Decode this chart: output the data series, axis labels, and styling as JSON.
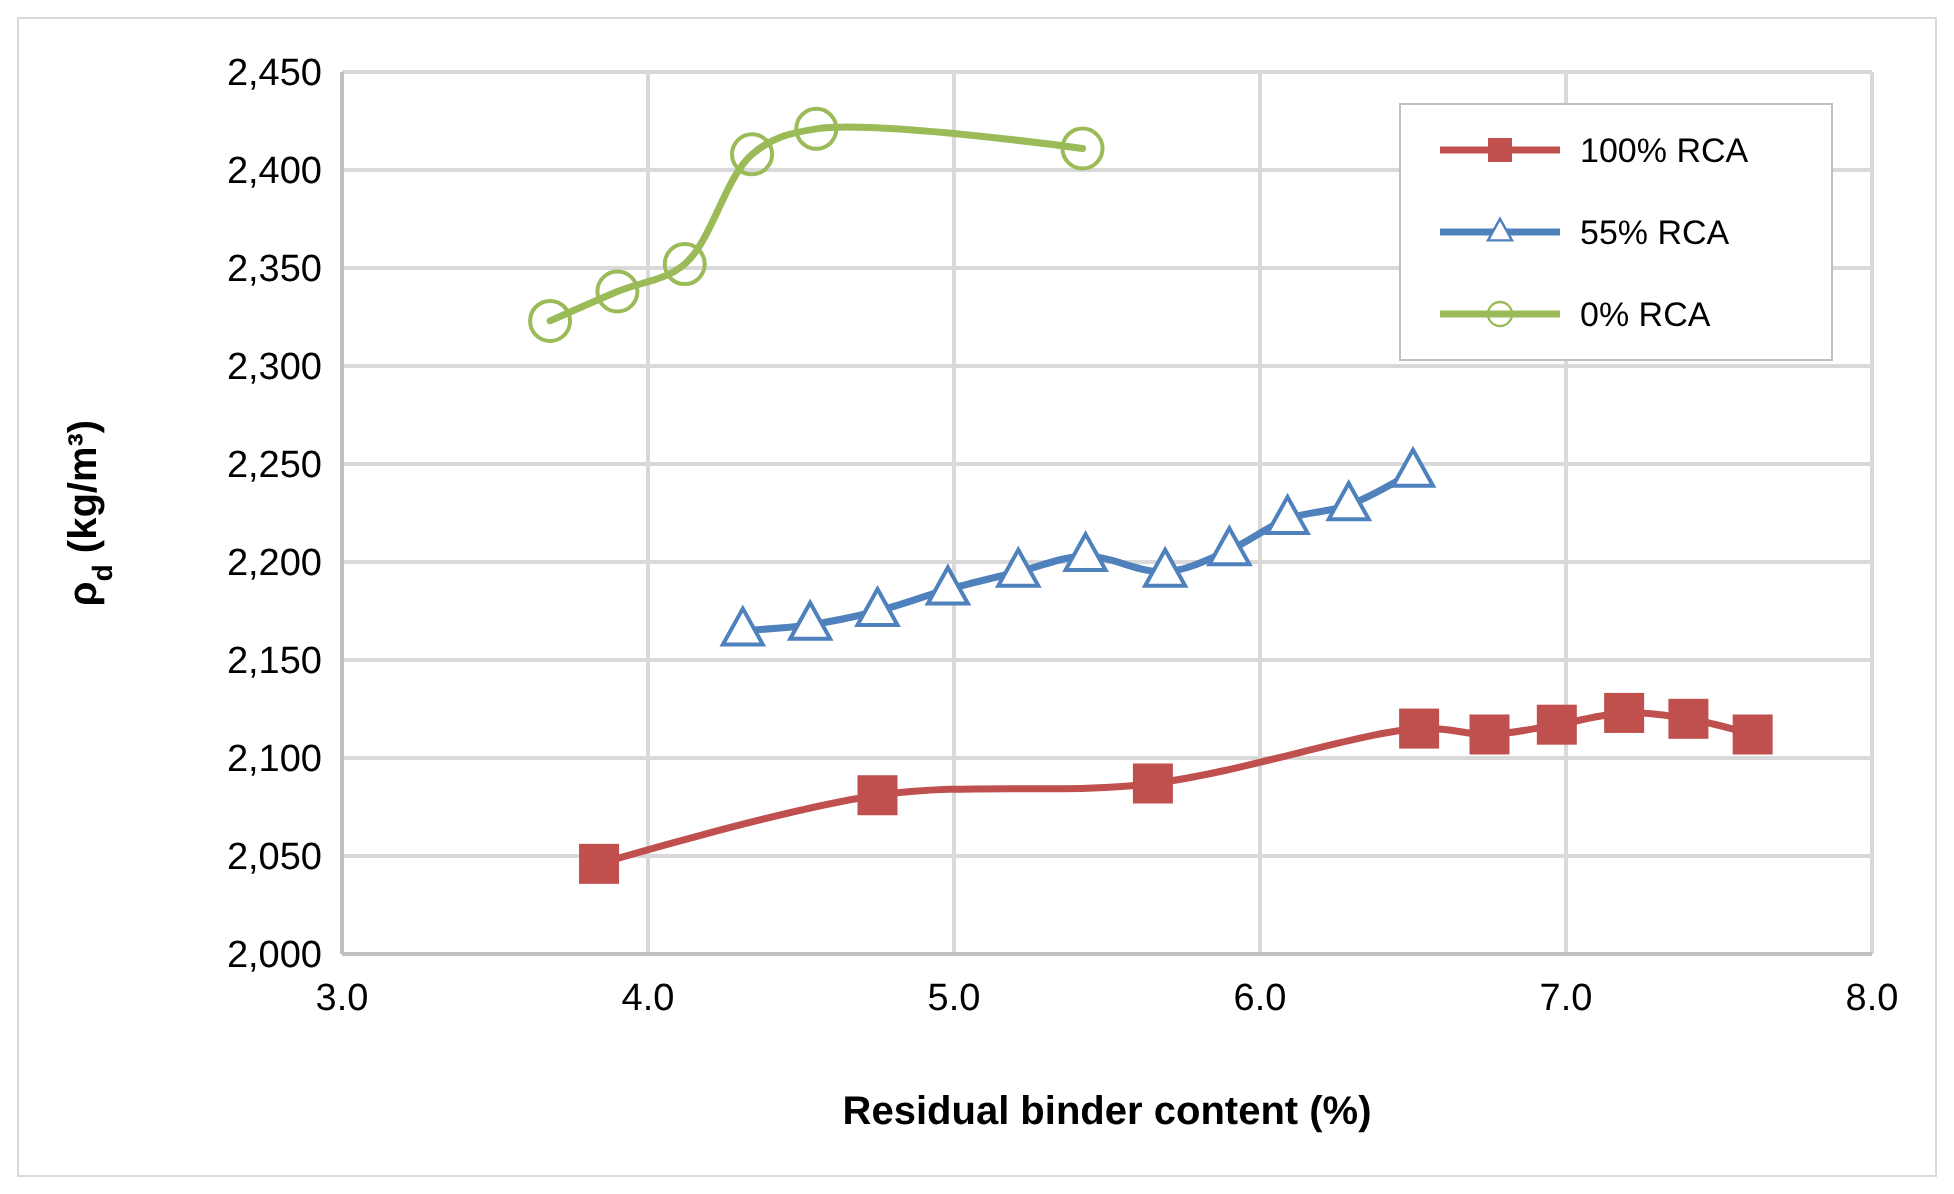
{
  "chart_data": {
    "type": "line",
    "xlabel": "Residual binder content (%)",
    "ylabel": "ρ$_{d}$ (kg/m³)",
    "xlim": [
      3,
      8
    ],
    "xticks": [
      {
        "value": 3,
        "label": "3.0"
      },
      {
        "value": 4,
        "label": "4.0"
      },
      {
        "value": 5,
        "label": "5.0"
      },
      {
        "value": 6,
        "label": "6.0"
      },
      {
        "value": 7,
        "label": "7.0"
      },
      {
        "value": 8,
        "label": "8.0"
      }
    ],
    "ylim": [
      2000,
      2450
    ],
    "yticks": [
      {
        "value": 2000,
        "label": "2,000"
      },
      {
        "value": 2050,
        "label": "2,050"
      },
      {
        "value": 2100,
        "label": "2,100"
      },
      {
        "value": 2150,
        "label": "2,150"
      },
      {
        "value": 2200,
        "label": "2,200"
      },
      {
        "value": 2250,
        "label": "2,250"
      },
      {
        "value": 2300,
        "label": "2,300"
      },
      {
        "value": 2350,
        "label": "2,350"
      },
      {
        "value": 2400,
        "label": "2,400"
      },
      {
        "value": 2450,
        "label": "2,450"
      }
    ],
    "grid": true,
    "legend": "top right",
    "line_style": "solid",
    "series": [
      {
        "name": "100% RCA",
        "color": "#c0504d",
        "marker": "square",
        "x": [
          3.84,
          4.75,
          5.65,
          6.52,
          6.75,
          6.97,
          7.19,
          7.4,
          7.61
        ],
        "values": [
          2046,
          2081,
          2087,
          2115,
          2112,
          2117,
          2123,
          2120,
          2112
        ]
      },
      {
        "name": "55% RCA",
        "color": "#4f81bd",
        "marker": "triangle",
        "x": [
          4.31,
          4.53,
          4.75,
          4.98,
          5.21,
          5.43,
          5.69,
          5.9,
          6.09,
          6.29,
          6.5
        ],
        "values": [
          2165,
          2168,
          2175,
          2186,
          2195,
          2203,
          2195,
          2206,
          2222,
          2229,
          2246
        ]
      },
      {
        "name": "0% RCA",
        "color": "#9bbb59",
        "marker": "circle",
        "x": [
          3.68,
          3.9,
          4.12,
          4.34,
          4.55,
          5.42
        ],
        "values": [
          2323,
          2338,
          2352,
          2408,
          2421,
          2411
        ]
      }
    ]
  }
}
